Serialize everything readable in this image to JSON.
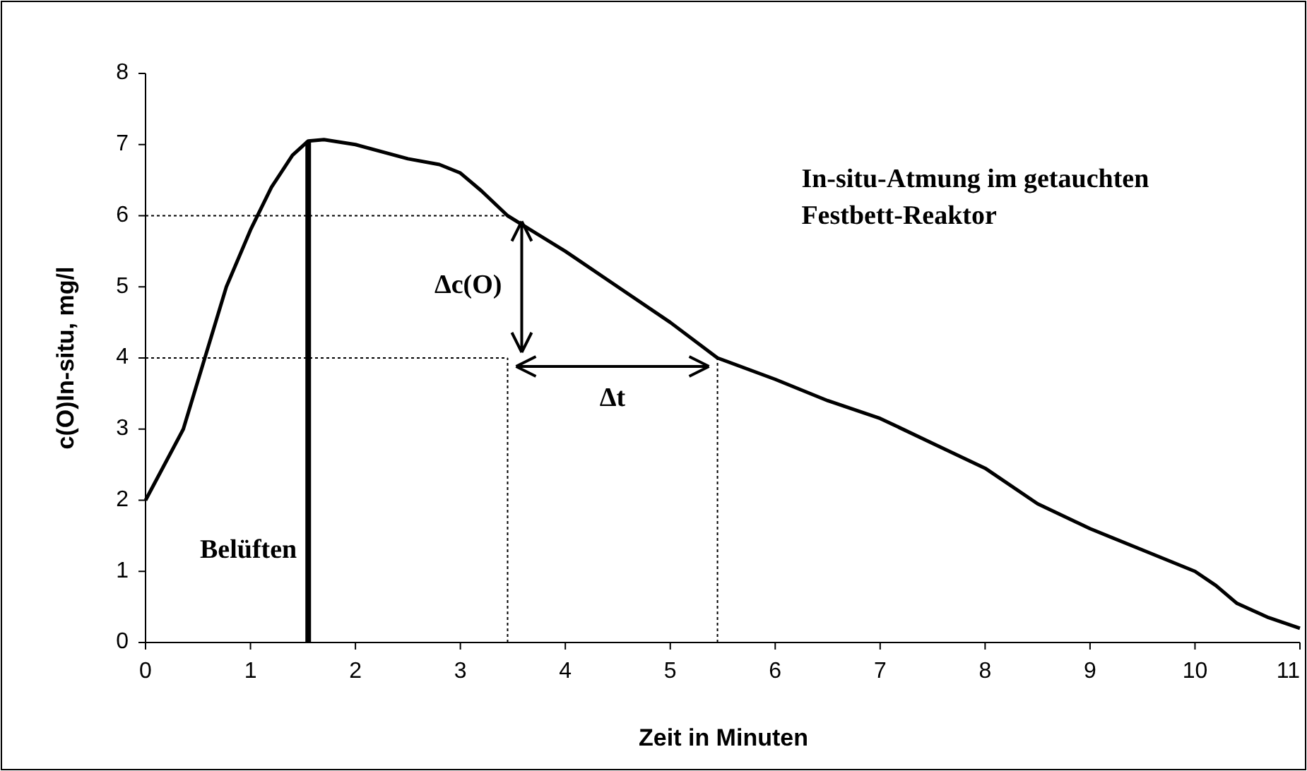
{
  "chart_data": {
    "type": "line",
    "xlabel": "Zeit in Minuten",
    "ylabel": "c(O)In-situ, mg/l",
    "x": [
      0,
      0.36,
      0.77,
      1,
      1.2,
      1.4,
      1.55,
      1.7,
      2,
      2.5,
      2.8,
      3,
      3.2,
      3.45,
      4,
      4.5,
      5,
      5.45,
      6,
      6.5,
      7,
      7.5,
      8,
      8.5,
      9,
      9.5,
      10,
      10.2,
      10.4,
      10.7,
      11
    ],
    "series": [
      {
        "color": "#000000",
        "values": [
          2,
          3,
          5,
          5.8,
          6.4,
          6.85,
          7.05,
          7.07,
          7,
          6.8,
          6.72,
          6.6,
          6.35,
          6,
          5.5,
          5,
          4.5,
          4,
          3.7,
          3.4,
          3.15,
          2.8,
          2.45,
          1.95,
          1.6,
          1.3,
          1,
          0.8,
          0.55,
          0.35,
          0.2
        ]
      }
    ],
    "xlim": [
      0,
      11
    ],
    "xticks": [
      0,
      1,
      2,
      3,
      4,
      5,
      6,
      7,
      8,
      9,
      10,
      11
    ],
    "ylim": [
      0,
      8
    ],
    "yticks": [
      0,
      1,
      2,
      3,
      4,
      5,
      6,
      7,
      8
    ],
    "grid": false,
    "marker": "none",
    "line_style": "solid",
    "ref_lines": [
      {
        "axis": "x",
        "value": 1.55,
        "label": "Belüften",
        "line_style": "solid",
        "color": "#000000"
      },
      {
        "axis": "y",
        "value": 6,
        "line_style": "dotted",
        "color": "#000000"
      },
      {
        "axis": "y",
        "value": 4,
        "line_style": "dotted",
        "color": "#000000"
      },
      {
        "axis": "x",
        "value": 3.45,
        "line_style": "dotted",
        "color": "#000000"
      },
      {
        "axis": "x",
        "value": 5.45,
        "line_style": "dotted",
        "color": "#000000"
      }
    ],
    "annotations": [
      "Δc(O)",
      "Δt",
      "In-situ-Atmung im getauchten Festbett-Reaktor"
    ]
  }
}
